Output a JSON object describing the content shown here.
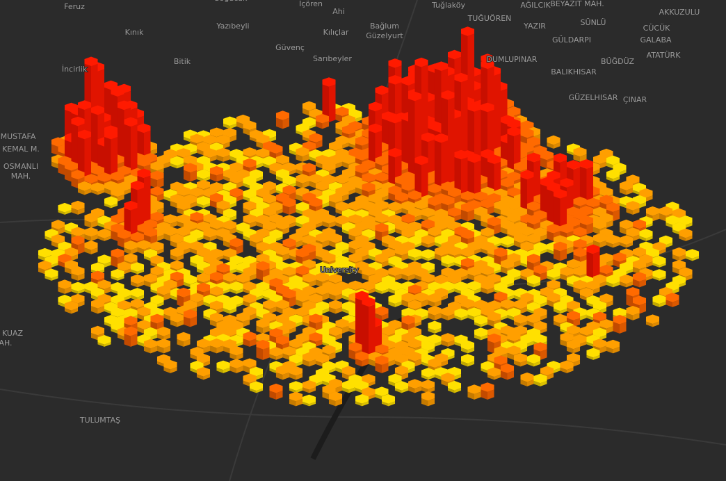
{
  "map": {
    "labels": [
      "Feruz",
      "Soğucak",
      "İçören",
      "Ahi",
      "Tuğlaköy",
      "AĞILCIK",
      "BEYAZIT MAH.",
      "AKKUZULU",
      "Kınık",
      "Yazıbeyli",
      "Kılıçlar",
      "Bağlum",
      "Güzelyurt",
      "TUĞUÖREN",
      "YAZIR",
      "SÜNLÜ",
      "CÜCÜK",
      "GÜLDARPI",
      "GALABA",
      "Güvenç",
      "Sarıbeyler",
      "Bitik",
      "DUMLUPINAR",
      "ATATÜRK",
      "BÜĞDÜZ",
      "İncirlik",
      "BALIKHISAR",
      "GÜZELHISAR",
      "ÇINAR",
      "MUSTAFA",
      "KEMAL M.",
      "OSMANLI",
      "MAH.",
      "University",
      "TULUMTAŞ",
      "KUAZ",
      "AH."
    ]
  }
}
